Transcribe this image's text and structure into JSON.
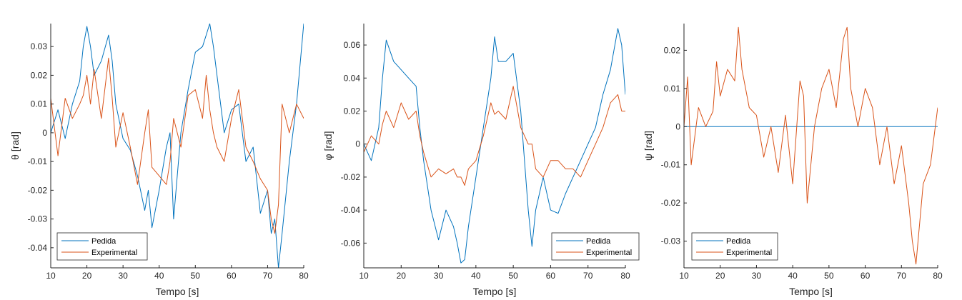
{
  "figure": {
    "colors": {
      "pedida": "#0072BD",
      "experimental": "#D95319",
      "axis": "#262626"
    }
  },
  "chart_data": [
    {
      "type": "line",
      "xlabel": "Tempo [s]",
      "ylabel": "θ [rad]",
      "xlim": [
        10,
        80
      ],
      "ylim": [
        -0.047,
        0.038
      ],
      "xticks": [
        10,
        20,
        30,
        40,
        50,
        60,
        70,
        80
      ],
      "yticks": [
        -0.04,
        -0.03,
        -0.02,
        -0.01,
        0,
        0.01,
        0.02,
        0.03
      ],
      "ytick_labels": [
        "-0.04",
        "-0.03",
        "-0.02",
        "-0.01",
        "0",
        "0.01",
        "0.02",
        "0.03"
      ],
      "legend": {
        "location": "bottom-left",
        "entries": [
          "Pedida",
          "Experimental"
        ]
      },
      "x": [
        10,
        12,
        14,
        16,
        18,
        19,
        20,
        21,
        22,
        24,
        26,
        27,
        28,
        30,
        32,
        34,
        36,
        37,
        38,
        40,
        42,
        43,
        44,
        46,
        48,
        50,
        52,
        53,
        54,
        55,
        56,
        58,
        60,
        62,
        64,
        66,
        68,
        70,
        71,
        72,
        73,
        74,
        76,
        78,
        80
      ],
      "series": [
        {
          "name": "Pedida",
          "color": "#0072BD",
          "values": [
            0.0,
            0.008,
            -0.002,
            0.01,
            0.018,
            0.03,
            0.037,
            0.03,
            0.02,
            0.025,
            0.034,
            0.025,
            0.01,
            -0.002,
            -0.006,
            -0.015,
            -0.027,
            -0.02,
            -0.033,
            -0.02,
            -0.005,
            0.0,
            -0.03,
            0.0,
            0.015,
            0.028,
            0.03,
            0.034,
            0.038,
            0.03,
            0.02,
            0.0,
            0.008,
            0.01,
            -0.01,
            -0.005,
            -0.028,
            -0.02,
            -0.035,
            -0.03,
            -0.047,
            -0.035,
            -0.01,
            0.01,
            0.038
          ]
        },
        {
          "name": "Experimental",
          "color": "#D95319",
          "values": [
            0.012,
            -0.008,
            0.012,
            0.005,
            0.01,
            0.013,
            0.02,
            0.01,
            0.022,
            0.005,
            0.026,
            0.012,
            -0.005,
            0.007,
            -0.005,
            -0.018,
            0.0,
            0.008,
            -0.012,
            -0.015,
            -0.018,
            -0.01,
            0.005,
            -0.005,
            0.013,
            0.015,
            0.005,
            0.02,
            0.008,
            0.0,
            -0.005,
            -0.01,
            0.005,
            0.015,
            -0.005,
            -0.01,
            -0.016,
            -0.02,
            -0.03,
            -0.035,
            -0.025,
            0.01,
            0.0,
            0.01,
            0.005
          ]
        }
      ]
    },
    {
      "type": "line",
      "xlabel": "Tempo [s]",
      "ylabel": "φ [rad]",
      "xlim": [
        10,
        80
      ],
      "ylim": [
        -0.075,
        0.073
      ],
      "xticks": [
        10,
        20,
        30,
        40,
        50,
        60,
        70,
        80
      ],
      "yticks": [
        -0.06,
        -0.04,
        -0.02,
        0,
        0.02,
        0.04,
        0.06
      ],
      "ytick_labels": [
        "-0.06",
        "-0.04",
        "-0.02",
        "0",
        "0.02",
        "0.04",
        "0.06"
      ],
      "legend": {
        "location": "bottom-right",
        "entries": [
          "Pedida",
          "Experimental"
        ]
      },
      "x": [
        10,
        12,
        14,
        15,
        16,
        18,
        20,
        22,
        24,
        25,
        26,
        28,
        30,
        32,
        34,
        35,
        36,
        37,
        38,
        40,
        42,
        44,
        45,
        46,
        48,
        50,
        52,
        54,
        55,
        56,
        58,
        60,
        62,
        64,
        66,
        68,
        70,
        72,
        74,
        76,
        78,
        79,
        80
      ],
      "series": [
        {
          "name": "Pedida",
          "color": "#0072BD",
          "values": [
            0.0,
            -0.01,
            0.01,
            0.04,
            0.063,
            0.05,
            0.045,
            0.04,
            0.035,
            0.01,
            -0.01,
            -0.04,
            -0.058,
            -0.04,
            -0.05,
            -0.06,
            -0.072,
            -0.07,
            -0.05,
            -0.02,
            0.01,
            0.04,
            0.065,
            0.05,
            0.05,
            0.055,
            0.02,
            -0.04,
            -0.062,
            -0.04,
            -0.02,
            -0.04,
            -0.042,
            -0.03,
            -0.02,
            -0.01,
            0.0,
            0.01,
            0.03,
            0.045,
            0.07,
            0.06,
            0.03
          ]
        },
        {
          "name": "Experimental",
          "color": "#D95319",
          "values": [
            -0.005,
            0.005,
            0.0,
            0.012,
            0.02,
            0.01,
            0.025,
            0.015,
            0.02,
            0.005,
            -0.005,
            -0.02,
            -0.015,
            -0.018,
            -0.015,
            -0.02,
            -0.02,
            -0.025,
            -0.015,
            -0.01,
            0.005,
            0.025,
            0.018,
            0.02,
            0.015,
            0.035,
            0.01,
            0.0,
            0.0,
            -0.015,
            -0.02,
            -0.01,
            -0.01,
            -0.015,
            -0.015,
            -0.02,
            -0.01,
            0.0,
            0.01,
            0.025,
            0.03,
            0.02,
            0.02
          ]
        }
      ]
    },
    {
      "type": "line",
      "xlabel": "Tempo [s]",
      "ylabel": "ψ [rad]",
      "xlim": [
        10,
        80
      ],
      "ylim": [
        -0.037,
        0.027
      ],
      "xticks": [
        10,
        20,
        30,
        40,
        50,
        60,
        70,
        80
      ],
      "yticks": [
        -0.03,
        -0.02,
        -0.01,
        0,
        0.01,
        0.02
      ],
      "ytick_labels": [
        "-0.03",
        "-0.02",
        "-0.01",
        "0",
        "0.01",
        "0.02"
      ],
      "legend": {
        "location": "bottom-left",
        "entries": [
          "Pedida",
          "Experimental"
        ]
      },
      "x": [
        10,
        11,
        12,
        14,
        16,
        18,
        19,
        20,
        22,
        24,
        25,
        26,
        28,
        30,
        32,
        34,
        36,
        38,
        40,
        42,
        43,
        44,
        46,
        48,
        50,
        52,
        54,
        55,
        56,
        58,
        60,
        62,
        64,
        66,
        68,
        70,
        72,
        73,
        74,
        76,
        78,
        80
      ],
      "series": [
        {
          "name": "Pedida",
          "color": "#0072BD",
          "values": [
            0,
            0,
            0,
            0,
            0,
            0,
            0,
            0,
            0,
            0,
            0,
            0,
            0,
            0,
            0,
            0,
            0,
            0,
            0,
            0,
            0,
            0,
            0,
            0,
            0,
            0,
            0,
            0,
            0,
            0,
            0,
            0,
            0,
            0,
            0,
            0,
            0,
            0,
            0,
            0,
            0,
            0
          ]
        },
        {
          "name": "Experimental",
          "color": "#D95319",
          "values": [
            0.0,
            0.013,
            -0.01,
            0.005,
            0.0,
            0.004,
            0.017,
            0.008,
            0.015,
            0.012,
            0.026,
            0.015,
            0.005,
            0.003,
            -0.008,
            0.0,
            -0.012,
            0.003,
            -0.015,
            0.012,
            0.008,
            -0.02,
            0.0,
            0.01,
            0.015,
            0.005,
            0.023,
            0.026,
            0.01,
            0.0,
            0.01,
            0.005,
            -0.01,
            0.0,
            -0.015,
            -0.005,
            -0.02,
            -0.03,
            -0.036,
            -0.015,
            -0.01,
            0.005
          ]
        }
      ]
    }
  ]
}
